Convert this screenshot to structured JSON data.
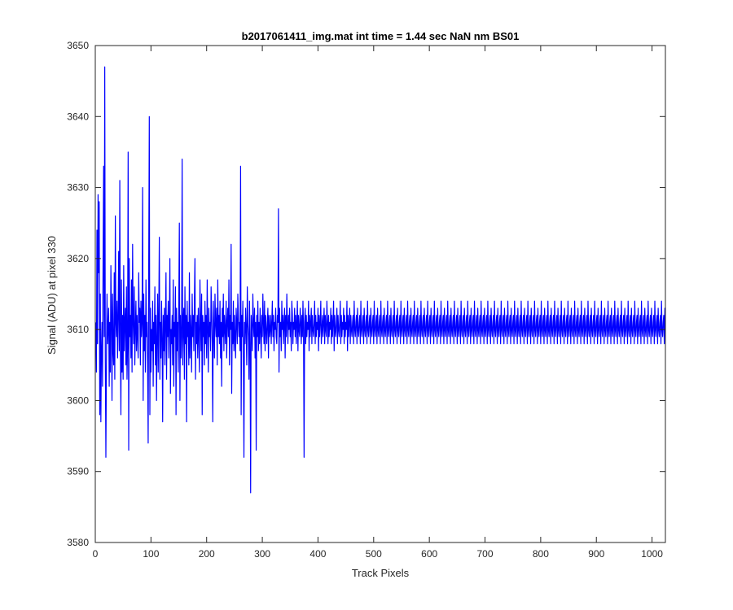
{
  "chart_data": {
    "type": "line",
    "title": "b2017061411_img.mat int time = 1.44 sec  NaN nm BS01",
    "xlabel": "Track Pixels",
    "ylabel": "Signal (ADU) at pixel 330",
    "xlim": [
      0,
      1024
    ],
    "ylim": [
      3580,
      3650
    ],
    "xticks": [
      0,
      100,
      200,
      300,
      400,
      500,
      600,
      700,
      800,
      900,
      1000
    ],
    "yticks": [
      3580,
      3590,
      3600,
      3610,
      3620,
      3630,
      3640,
      3650
    ],
    "grid": false,
    "series": [
      {
        "color": "#0000ff",
        "x_start": 1,
        "x_step": 1,
        "values": [
          3611,
          3604,
          3624,
          3608,
          3629,
          3618,
          3628,
          3598,
          3615,
          3597,
          3607,
          3611,
          3602,
          3620,
          3633,
          3609,
          3647,
          3606,
          3592,
          3605,
          3615,
          3608,
          3610,
          3613,
          3602,
          3611,
          3604,
          3619,
          3612,
          3600,
          3615,
          3607,
          3605,
          3618,
          3603,
          3626,
          3611,
          3609,
          3614,
          3606,
          3612,
          3621,
          3607,
          3631,
          3609,
          3598,
          3617,
          3604,
          3612,
          3603,
          3619,
          3607,
          3611,
          3613,
          3605,
          3616,
          3603,
          3608,
          3635,
          3593,
          3620,
          3609,
          3612,
          3606,
          3617,
          3604,
          3622,
          3611,
          3608,
          3616,
          3605,
          3610,
          3614,
          3607,
          3612,
          3609,
          3606,
          3618,
          3611,
          3613,
          3605,
          3614,
          3609,
          3611,
          3630,
          3600,
          3615,
          3607,
          3612,
          3604,
          3617,
          3609,
          3611,
          3605,
          3594,
          3620,
          3640,
          3598,
          3613,
          3604,
          3610,
          3607,
          3614,
          3602,
          3611,
          3608,
          3616,
          3605,
          3612,
          3600,
          3609,
          3615,
          3604,
          3612,
          3623,
          3603,
          3611,
          3606,
          3614,
          3609,
          3597,
          3612,
          3607,
          3613,
          3605,
          3611,
          3618,
          3603,
          3612,
          3609,
          3614,
          3606,
          3611,
          3620,
          3601,
          3610,
          3608,
          3612,
          3605,
          3617,
          3602,
          3611,
          3609,
          3616,
          3598,
          3613,
          3607,
          3611,
          3604,
          3614,
          3625,
          3600,
          3612,
          3606,
          3609,
          3634,
          3605,
          3611,
          3613,
          3603,
          3616,
          3608,
          3612,
          3597,
          3614,
          3609,
          3611,
          3605,
          3618,
          3606,
          3612,
          3610,
          3604,
          3615,
          3609,
          3612,
          3607,
          3614,
          3620,
          3603,
          3611,
          3608,
          3612,
          3606,
          3613,
          3609,
          3604,
          3617,
          3611,
          3607,
          3615,
          3598,
          3612,
          3609,
          3611,
          3605,
          3614,
          3608,
          3612,
          3606,
          3617,
          3610,
          3604,
          3613,
          3609,
          3611,
          3607,
          3616,
          3612,
          3608,
          3597,
          3614,
          3610,
          3606,
          3615,
          3611,
          3609,
          3613,
          3605,
          3617,
          3609,
          3612,
          3608,
          3614,
          3606,
          3611,
          3602,
          3613,
          3609,
          3615,
          3607,
          3612,
          3610,
          3608,
          3614,
          3606,
          3611,
          3613,
          3609,
          3617,
          3605,
          3612,
          3610,
          3622,
          3601,
          3611,
          3608,
          3614,
          3607,
          3612,
          3609,
          3606,
          3613,
          3611,
          3608,
          3615,
          3612,
          3609,
          3611,
          3607,
          3633,
          3598,
          3612,
          3609,
          3614,
          3606,
          3592,
          3611,
          3608,
          3613,
          3610,
          3605,
          3616,
          3611,
          3609,
          3603,
          3614,
          3608,
          3587,
          3612,
          3610,
          3607,
          3615,
          3611,
          3609,
          3613,
          3606,
          3611,
          3593,
          3612,
          3609,
          3614,
          3607,
          3611,
          3608,
          3613,
          3610,
          3606,
          3612,
          3609,
          3615,
          3611,
          3608,
          3614,
          3607,
          3612,
          3610,
          3608,
          3611,
          3613,
          3606,
          3612,
          3609,
          3610,
          3612,
          3608,
          3611,
          3614,
          3609,
          3612,
          3607,
          3611,
          3610,
          3613,
          3609,
          3608,
          3612,
          3611,
          3627,
          3604,
          3613,
          3609,
          3611,
          3607,
          3614,
          3610,
          3612,
          3608,
          3611,
          3613,
          3606,
          3612,
          3609,
          3615,
          3611,
          3608,
          3612,
          3610,
          3613,
          3609,
          3611,
          3607,
          3614,
          3612,
          3608,
          3611,
          3610,
          3613,
          3609,
          3612,
          3608,
          3611,
          3614,
          3607,
          3612,
          3610,
          3609,
          3613,
          3611,
          3608,
          3612,
          3609,
          3614,
          3610,
          3592,
          3611,
          3613,
          3608,
          3612,
          3609,
          3611,
          3610,
          3614,
          3607,
          3612,
          3609,
          3611,
          3613,
          3608,
          3612,
          3610,
          3609,
          3611,
          3614,
          3608,
          3612,
          3609,
          3611,
          3610,
          3613,
          3607,
          3612,
          3609,
          3611,
          3614,
          3608,
          3610,
          3612,
          3609,
          3611,
          3613,
          3608,
          3612,
          3610,
          3609,
          3614,
          3611,
          3608,
          3612,
          3609,
          3611,
          3610,
          3613,
          3608,
          3612,
          3609,
          3611,
          3614,
          3607,
          3612,
          3610,
          3609,
          3611,
          3613,
          3608,
          3612,
          3610,
          3609,
          3611,
          3614,
          3608,
          3612,
          3609,
          3611,
          3610,
          3613,
          3608,
          3612,
          3609,
          3611,
          3610,
          3614,
          3607,
          3612,
          3609,
          3611,
          3613,
          3608,
          3612,
          3610,
          3609,
          3611,
          3612,
          3608,
          3614,
          3610,
          3609,
          3611,
          3612,
          3608,
          3613,
          3610,
          3609,
          3611,
          3612,
          3608,
          3614,
          3610,
          3609,
          3611,
          3612,
          3608,
          3613,
          3610,
          3609,
          3611,
          3612,
          3608,
          3614,
          3610,
          3609,
          3611,
          3612,
          3608,
          3613,
          3610,
          3609,
          3611,
          3612,
          3608,
          3614,
          3610,
          3609,
          3611,
          3612,
          3608,
          3613,
          3610,
          3609,
          3611,
          3612,
          3608,
          3614,
          3610,
          3609,
          3611,
          3612,
          3608,
          3613,
          3610,
          3609,
          3611,
          3612,
          3608,
          3614,
          3610,
          3609,
          3611,
          3612,
          3608,
          3613,
          3610,
          3609,
          3611,
          3612,
          3608,
          3614,
          3610,
          3609,
          3611,
          3612,
          3608,
          3613,
          3610,
          3609,
          3611,
          3612,
          3608,
          3614,
          3610,
          3609,
          3611,
          3612,
          3608,
          3613,
          3610,
          3609,
          3611,
          3612,
          3608,
          3614,
          3610,
          3609,
          3611,
          3612,
          3608,
          3613,
          3610,
          3609,
          3611,
          3612,
          3608,
          3614,
          3610,
          3609,
          3611,
          3612,
          3608,
          3613,
          3610,
          3609,
          3611,
          3612,
          3608,
          3614,
          3610,
          3609,
          3611,
          3612,
          3608,
          3613,
          3610,
          3609,
          3611,
          3612,
          3608,
          3614,
          3610,
          3609,
          3611,
          3612,
          3608,
          3613,
          3610,
          3609,
          3611,
          3612,
          3608,
          3614,
          3610,
          3609,
          3611,
          3612,
          3608,
          3613,
          3610,
          3609,
          3611,
          3612,
          3608,
          3614,
          3610,
          3609,
          3611,
          3612,
          3608,
          3613,
          3610,
          3609,
          3611,
          3612,
          3608,
          3614,
          3610,
          3609,
          3611,
          3612,
          3608,
          3613,
          3610,
          3609,
          3611,
          3612,
          3608,
          3614,
          3610,
          3609,
          3611,
          3612,
          3608,
          3613,
          3610,
          3609,
          3611,
          3612,
          3608,
          3614,
          3610,
          3609,
          3611,
          3612,
          3608,
          3613,
          3610,
          3609,
          3611,
          3612,
          3608,
          3614,
          3610,
          3609,
          3611,
          3612,
          3608,
          3613,
          3610,
          3609,
          3611,
          3612,
          3608,
          3614,
          3610,
          3609,
          3611,
          3612,
          3608,
          3613,
          3610,
          3609,
          3611,
          3612,
          3608,
          3614,
          3610,
          3609,
          3611,
          3612,
          3608,
          3613,
          3610,
          3609,
          3611,
          3612,
          3608,
          3614,
          3610,
          3609,
          3611,
          3612,
          3608,
          3613,
          3610,
          3609,
          3611,
          3612,
          3608,
          3614,
          3610,
          3609,
          3611,
          3612,
          3608,
          3613,
          3610,
          3609,
          3611,
          3612,
          3608,
          3614,
          3610,
          3609,
          3611,
          3612,
          3608,
          3613,
          3610,
          3609,
          3611,
          3612,
          3608,
          3614,
          3610,
          3609,
          3611,
          3612,
          3608,
          3613,
          3610,
          3609,
          3611,
          3612,
          3608,
          3614,
          3610,
          3609,
          3611,
          3612,
          3608,
          3613,
          3610,
          3609,
          3611,
          3612,
          3608,
          3614,
          3610,
          3609,
          3611,
          3612,
          3608,
          3613,
          3610,
          3609,
          3611,
          3612,
          3608,
          3614,
          3610,
          3609,
          3611,
          3612,
          3608,
          3613,
          3610,
          3609,
          3611,
          3612,
          3608,
          3614,
          3610,
          3609,
          3611,
          3612,
          3608,
          3613,
          3610,
          3609,
          3611,
          3612,
          3608,
          3614,
          3610,
          3609,
          3611,
          3612,
          3608,
          3613,
          3610,
          3609,
          3611,
          3612,
          3608,
          3614,
          3610,
          3609,
          3611,
          3612,
          3608,
          3613,
          3610,
          3609,
          3611,
          3612,
          3608,
          3614,
          3610,
          3609,
          3611,
          3612,
          3608,
          3613,
          3610,
          3609,
          3611,
          3612,
          3608,
          3614,
          3610,
          3609,
          3611,
          3612,
          3608,
          3613,
          3610,
          3609,
          3611,
          3612,
          3608,
          3614,
          3610,
          3609,
          3611,
          3612,
          3608,
          3613,
          3610,
          3609,
          3611,
          3612,
          3608,
          3614,
          3610,
          3609,
          3611,
          3612,
          3608,
          3613,
          3610,
          3609,
          3611,
          3612,
          3608,
          3614,
          3610,
          3609,
          3611,
          3612,
          3608,
          3613,
          3610,
          3609,
          3611,
          3612,
          3608,
          3614,
          3610,
          3609,
          3611,
          3612,
          3608,
          3613,
          3610,
          3609,
          3611,
          3612,
          3608,
          3614,
          3610,
          3609,
          3611,
          3612,
          3608,
          3613,
          3610,
          3609,
          3611,
          3612,
          3608,
          3614,
          3610,
          3609,
          3611,
          3612,
          3608,
          3613,
          3610,
          3609,
          3611,
          3612,
          3608,
          3614,
          3610,
          3609,
          3611,
          3612,
          3608,
          3613,
          3610,
          3609,
          3611,
          3612,
          3608,
          3614,
          3610,
          3609,
          3611,
          3612,
          3608,
          3613,
          3610,
          3609,
          3611,
          3612,
          3608,
          3614,
          3610,
          3609,
          3611,
          3612,
          3608,
          3613,
          3610,
          3609,
          3611,
          3612,
          3608,
          3614,
          3610,
          3609,
          3611,
          3612,
          3608,
          3613,
          3610,
          3609,
          3611,
          3612,
          3608,
          3614,
          3610,
          3609,
          3611,
          3612,
          3608,
          3613,
          3610,
          3609,
          3611,
          3612,
          3608,
          3614,
          3610,
          3609,
          3611,
          3612,
          3608,
          3613,
          3610,
          3609,
          3611,
          3612,
          3608,
          3614,
          3610,
          3609,
          3611,
          3612,
          3608,
          3613,
          3610,
          3609,
          3611,
          3612,
          3608,
          3614,
          3610,
          3609,
          3611,
          3612,
          3608,
          3613,
          3610,
          3609,
          3611,
          3612,
          3608,
          3614,
          3610,
          3609,
          3611,
          3612,
          3608,
          3613,
          3610,
          3609,
          3611,
          3612,
          3608,
          3614,
          3610,
          3609,
          3611,
          3612,
          3608,
          3613,
          3610,
          3609,
          3611,
          3612,
          3608,
          3614,
          3610,
          3609,
          3611,
          3612,
          3608,
          3613,
          3610,
          3609,
          3611,
          3612,
          3608,
          3614,
          3610,
          3609,
          3611,
          3612,
          3608,
          3613,
          3610,
          3609,
          3611,
          3612,
          3608,
          3614,
          3610,
          3609,
          3611,
          3612,
          3608,
          3613,
          3610,
          3609,
          3611,
          3612,
          3608,
          3614,
          3610,
          3609,
          3611,
          3612,
          3608,
          3613,
          3610,
          3609,
          3611,
          3612,
          3608,
          3614,
          3610,
          3609,
          3611,
          3612,
          3608,
          3613,
          3610,
          3609,
          3611,
          3612,
          3608
        ]
      }
    ]
  }
}
